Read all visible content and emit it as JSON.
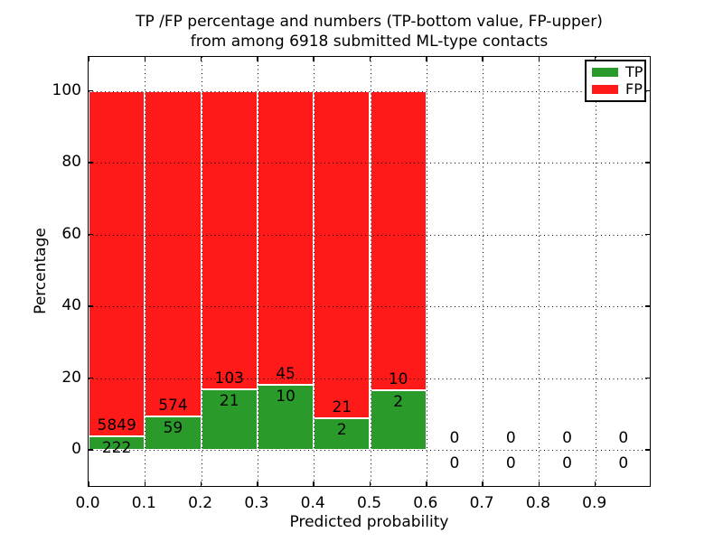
{
  "title": {
    "line1": "TP /FP percentage and numbers (TP-bottom value, FP-upper)",
    "line2": "from among 6918 submitted ML-type contacts"
  },
  "axes": {
    "xlabel": "Predicted probability",
    "ylabel": "Percentage",
    "xticks": [
      {
        "v": 0.0,
        "label": "0.0"
      },
      {
        "v": 0.1,
        "label": "0.1"
      },
      {
        "v": 0.2,
        "label": "0.2"
      },
      {
        "v": 0.3,
        "label": "0.3"
      },
      {
        "v": 0.4,
        "label": "0.4"
      },
      {
        "v": 0.5,
        "label": "0.5"
      },
      {
        "v": 0.6,
        "label": "0.6"
      },
      {
        "v": 0.7,
        "label": "0.7"
      },
      {
        "v": 0.8,
        "label": "0.8"
      },
      {
        "v": 0.9,
        "label": "0.9"
      }
    ],
    "yticks": [
      {
        "v": 0,
        "label": "0"
      },
      {
        "v": 20,
        "label": "20"
      },
      {
        "v": 40,
        "label": "40"
      },
      {
        "v": 60,
        "label": "60"
      },
      {
        "v": 80,
        "label": "80"
      },
      {
        "v": 100,
        "label": "100"
      }
    ],
    "xlim": [
      0.0,
      1.0
    ],
    "ylim": [
      -10,
      110
    ]
  },
  "legend": {
    "items": [
      {
        "label": "TP",
        "color": "#2a9a2a"
      },
      {
        "label": "FP",
        "color": "#ff1a1a"
      }
    ]
  },
  "chart_data": {
    "type": "bar",
    "stacked": true,
    "title": "TP /FP percentage and numbers (TP-bottom value, FP-upper) from among 6918 submitted ML-type contacts",
    "xlabel": "Predicted probability",
    "ylabel": "Percentage",
    "xlim": [
      0.0,
      1.0
    ],
    "ylim": [
      -10,
      110
    ],
    "grid": "dotted, both axes, drawn above bars",
    "legend_position": "upper-right",
    "colors": {
      "TP": "#2a9a2a",
      "FP": "#ff1a1a"
    },
    "bins": [
      {
        "x0": 0.0,
        "x1": 0.1,
        "TP": 222,
        "FP": 5849,
        "TP_pct": 3.66,
        "FP_pct": 96.34
      },
      {
        "x0": 0.1,
        "x1": 0.2,
        "TP": 59,
        "FP": 574,
        "TP_pct": 9.32,
        "FP_pct": 90.68
      },
      {
        "x0": 0.2,
        "x1": 0.3,
        "TP": 21,
        "FP": 103,
        "TP_pct": 16.94,
        "FP_pct": 83.06
      },
      {
        "x0": 0.3,
        "x1": 0.4,
        "TP": 10,
        "FP": 45,
        "TP_pct": 18.18,
        "FP_pct": 81.82
      },
      {
        "x0": 0.4,
        "x1": 0.5,
        "TP": 2,
        "FP": 21,
        "TP_pct": 8.7,
        "FP_pct": 91.3
      },
      {
        "x0": 0.5,
        "x1": 0.6,
        "TP": 2,
        "FP": 10,
        "TP_pct": 16.67,
        "FP_pct": 83.33
      },
      {
        "x0": 0.6,
        "x1": 0.7,
        "TP": 0,
        "FP": 0,
        "TP_pct": 0,
        "FP_pct": 0
      },
      {
        "x0": 0.7,
        "x1": 0.8,
        "TP": 0,
        "FP": 0,
        "TP_pct": 0,
        "FP_pct": 0
      },
      {
        "x0": 0.8,
        "x1": 0.9,
        "TP": 0,
        "FP": 0,
        "TP_pct": 0,
        "FP_pct": 0
      },
      {
        "x0": 0.9,
        "x1": 1.0,
        "TP": 0,
        "FP": 0,
        "TP_pct": 0,
        "FP_pct": 0
      }
    ]
  }
}
